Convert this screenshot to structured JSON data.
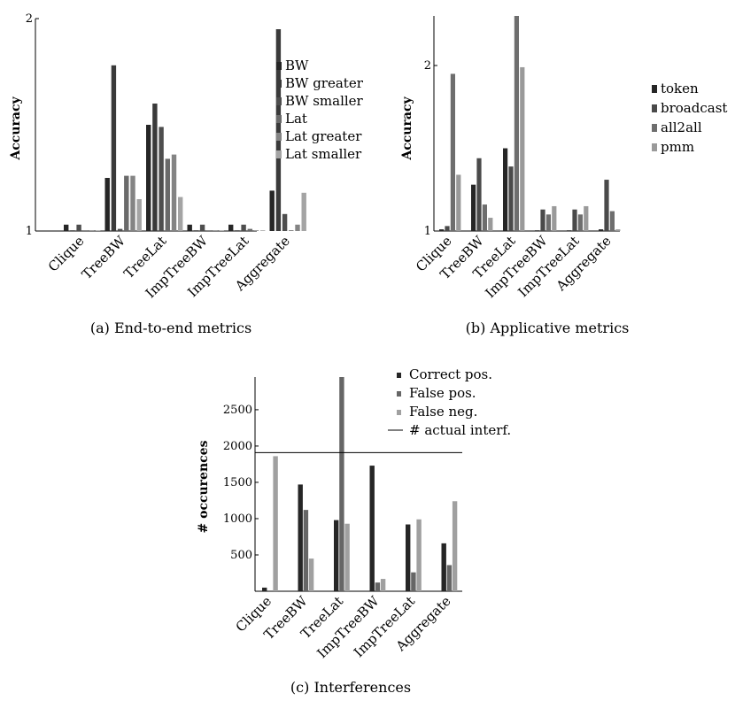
{
  "colors": {
    "bw": "#262626",
    "bw_greater": "#3a3a3a",
    "bw_smaller": "#4e4e4e",
    "lat": "#6a6a6a",
    "lat_greater": "#848484",
    "lat_smaller": "#a4a4a4",
    "token": "#262626",
    "broadcast": "#4a4a4a",
    "all2all": "#6e6e6e",
    "pmm": "#9a9a9a",
    "correct_pos": "#262626",
    "false_pos": "#666666",
    "false_neg": "#a0a0a0"
  },
  "chart_data": [
    {
      "type": "bar",
      "caption": "(a) End-to-end metrics",
      "ylabel": "Accuracy",
      "xlabel": "",
      "ylim": [
        1,
        2
      ],
      "yticks": [
        "1",
        "2"
      ],
      "categories": [
        "Clique",
        "TreeBW",
        "TreeLat",
        "ImpTreeBW",
        "ImpTreeLat",
        "Aggregate"
      ],
      "series": [
        {
          "name": "BW",
          "color_key": "bw",
          "values": [
            1.03,
            1.25,
            1.5,
            1.03,
            1.03,
            1.19
          ]
        },
        {
          "name": "BW greater",
          "color_key": "bw_greater",
          "values": [
            1.0,
            1.78,
            1.6,
            1.0,
            1.0,
            1.95
          ]
        },
        {
          "name": "BW smaller",
          "color_key": "bw_smaller",
          "values": [
            1.03,
            1.01,
            1.49,
            1.03,
            1.03,
            1.08
          ]
        },
        {
          "name": "Lat",
          "color_key": "lat",
          "values": [
            1.0,
            1.26,
            1.34,
            1.0,
            1.01,
            1.0
          ]
        },
        {
          "name": "Lat greater",
          "color_key": "lat_greater",
          "values": [
            1.0,
            1.26,
            1.36,
            1.0,
            1.0,
            1.03
          ]
        },
        {
          "name": "Lat smaller",
          "color_key": "lat_smaller",
          "values": [
            1.0,
            1.15,
            1.16,
            1.0,
            1.0,
            1.18
          ]
        }
      ]
    },
    {
      "type": "bar",
      "caption": "(b) Applicative metrics",
      "ylabel": "Accuracy",
      "xlabel": "",
      "ylim": [
        1,
        2.3
      ],
      "yticks": [
        "1",
        "2"
      ],
      "categories": [
        "Clique",
        "TreeBW",
        "TreeLat",
        "ImpTreeBW",
        "ImpTreeLat",
        "Aggregate"
      ],
      "series": [
        {
          "name": "token",
          "color_key": "token",
          "values": [
            1.01,
            1.28,
            1.5,
            1.0,
            1.0,
            1.01
          ]
        },
        {
          "name": "broadcast",
          "color_key": "broadcast",
          "values": [
            1.03,
            1.44,
            1.39,
            1.13,
            1.13,
            1.31
          ]
        },
        {
          "name": "all2all",
          "color_key": "all2all",
          "values": [
            1.95,
            1.16,
            2.3,
            1.1,
            1.1,
            1.12
          ]
        },
        {
          "name": "pmm",
          "color_key": "pmm",
          "values": [
            1.34,
            1.08,
            1.99,
            1.15,
            1.15,
            1.01
          ]
        }
      ]
    },
    {
      "type": "bar",
      "caption": "(c) Interferences",
      "ylabel": "# occurences",
      "xlabel": "",
      "ylim": [
        0,
        2950
      ],
      "yticks": [
        "500",
        "1000",
        "1500",
        "2000",
        "2500"
      ],
      "categories": [
        "Clique",
        "TreeBW",
        "TreeLat",
        "ImpTreeBW",
        "ImpTreeLat",
        "Aggregate"
      ],
      "series": [
        {
          "name": "Correct pos.",
          "color_key": "correct_pos",
          "values": [
            50,
            1470,
            980,
            1730,
            920,
            660
          ]
        },
        {
          "name": "False pos.",
          "color_key": "false_pos",
          "values": [
            0,
            1120,
            2950,
            120,
            260,
            360
          ]
        },
        {
          "name": "False neg.",
          "color_key": "false_neg",
          "values": [
            1860,
            450,
            930,
            170,
            990,
            1240
          ]
        }
      ],
      "reference_line": {
        "name": "# actual interf.",
        "value": 1910
      }
    }
  ]
}
